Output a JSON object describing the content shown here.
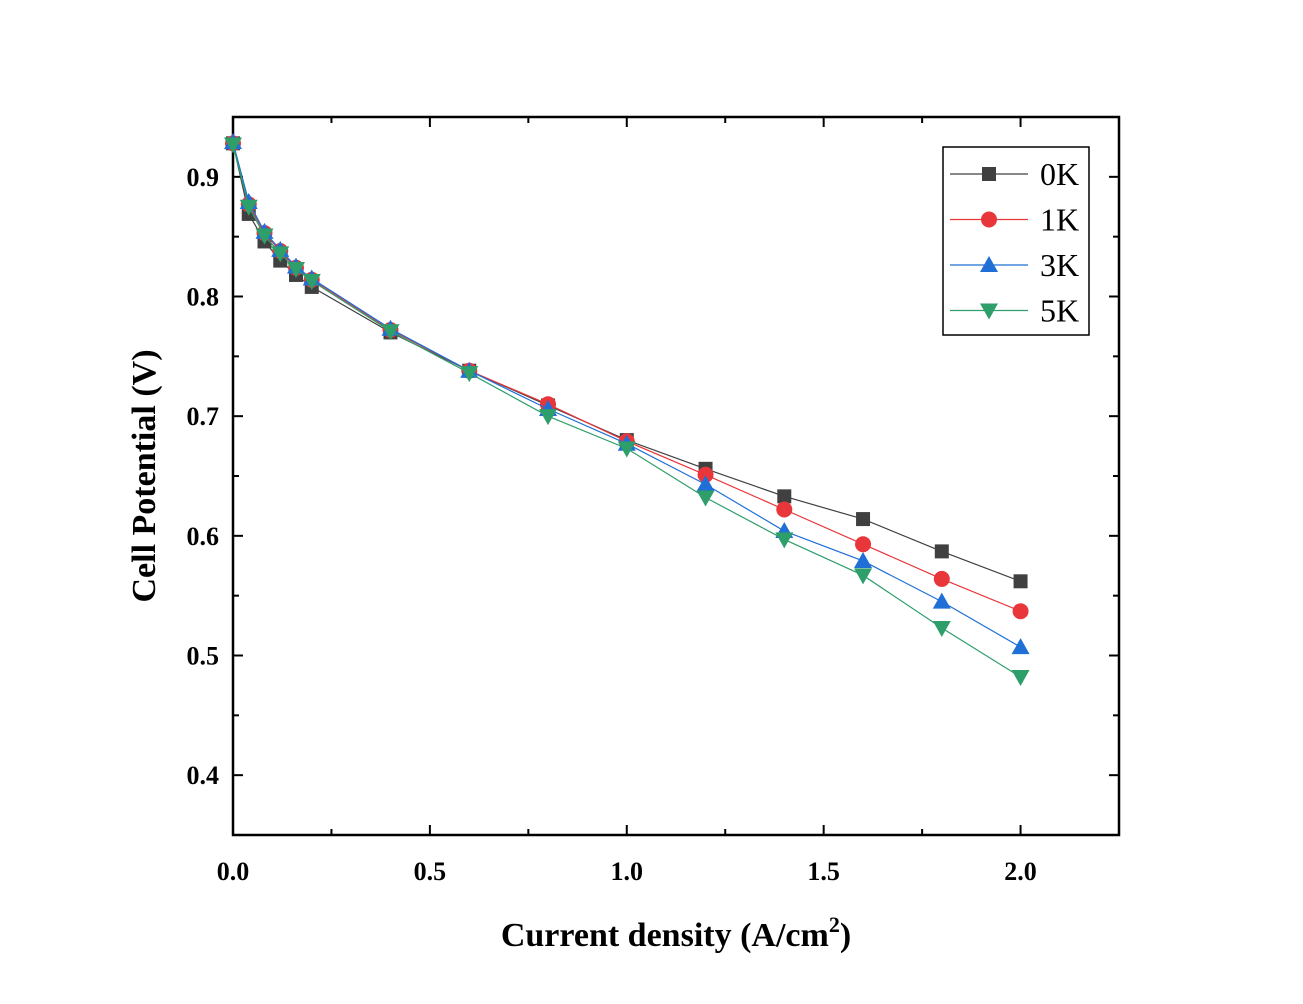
{
  "chart_data": {
    "type": "line",
    "xlabel_main": "Current density (A/cm",
    "xlabel_sup": "2",
    "xlabel_end": ")",
    "ylabel": "Cell Potential (V)",
    "xlim": [
      0,
      2.25
    ],
    "ylim": [
      0.35,
      0.95
    ],
    "xticks": [
      0.0,
      0.5,
      1.0,
      1.5,
      2.0
    ],
    "xtick_labels": [
      "0.0",
      "0.5",
      "1.0",
      "1.5",
      "2.0"
    ],
    "yticks": [
      0.4,
      0.5,
      0.6,
      0.7,
      0.8,
      0.9
    ],
    "ytick_labels": [
      "0.4",
      "0.5",
      "0.6",
      "0.7",
      "0.8",
      "0.9"
    ],
    "grid": false,
    "legend_position": "top-right",
    "series": [
      {
        "name": "0K",
        "color": "#404040",
        "marker": "square",
        "x": [
          0.0,
          0.04,
          0.08,
          0.12,
          0.16,
          0.2,
          0.4,
          0.6,
          0.8,
          1.0,
          1.2,
          1.4,
          1.6,
          1.8,
          2.0
        ],
        "y": [
          0.928,
          0.869,
          0.846,
          0.83,
          0.818,
          0.808,
          0.77,
          0.738,
          0.709,
          0.68,
          0.656,
          0.633,
          0.614,
          0.587,
          0.562
        ]
      },
      {
        "name": "1K",
        "color": "#e8363a",
        "marker": "circle",
        "x": [
          0.0,
          0.04,
          0.08,
          0.12,
          0.16,
          0.2,
          0.4,
          0.6,
          0.8,
          1.0,
          1.2,
          1.4,
          1.6,
          1.8,
          2.0
        ],
        "y": [
          0.928,
          0.877,
          0.853,
          0.838,
          0.824,
          0.814,
          0.772,
          0.738,
          0.71,
          0.679,
          0.651,
          0.622,
          0.593,
          0.564,
          0.537
        ]
      },
      {
        "name": "3K",
        "color": "#1f6fd6",
        "marker": "triangle-up",
        "x": [
          0.0,
          0.04,
          0.08,
          0.12,
          0.16,
          0.2,
          0.4,
          0.6,
          0.8,
          1.0,
          1.2,
          1.4,
          1.6,
          1.8,
          2.0
        ],
        "y": [
          0.929,
          0.879,
          0.854,
          0.839,
          0.825,
          0.815,
          0.773,
          0.738,
          0.706,
          0.677,
          0.643,
          0.604,
          0.579,
          0.545,
          0.507
        ]
      },
      {
        "name": "5K",
        "color": "#2e9e6b",
        "marker": "triangle-down",
        "x": [
          0.0,
          0.04,
          0.08,
          0.12,
          0.16,
          0.2,
          0.4,
          0.6,
          0.8,
          1.0,
          1.2,
          1.4,
          1.6,
          1.8,
          2.0
        ],
        "y": [
          0.927,
          0.875,
          0.851,
          0.836,
          0.823,
          0.813,
          0.771,
          0.736,
          0.7,
          0.673,
          0.632,
          0.597,
          0.567,
          0.523,
          0.482
        ]
      }
    ]
  }
}
